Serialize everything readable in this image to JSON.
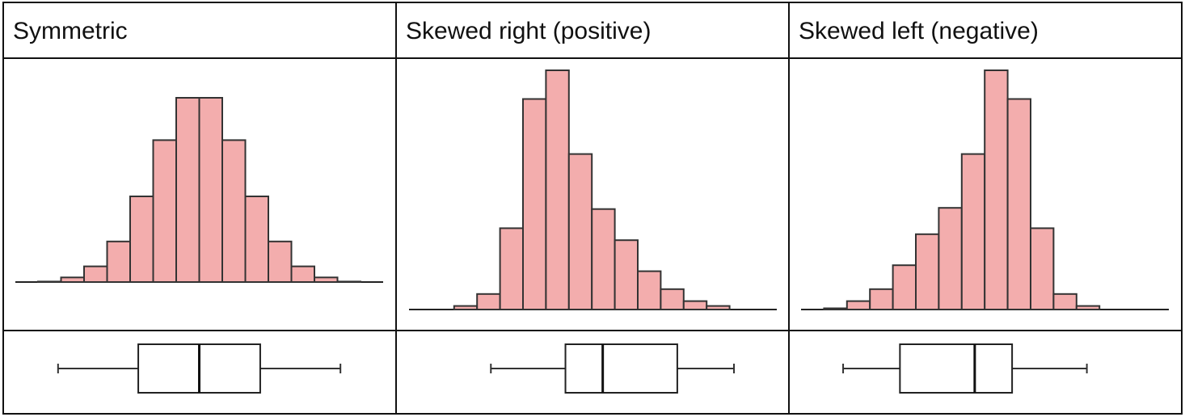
{
  "colors": {
    "bar_fill": "#f3adad",
    "line": "#222222",
    "background": "#ffffff"
  },
  "headers": [
    "Symmetric",
    "Skewed right (positive)",
    "Skewed left (negative)"
  ],
  "chart_data": [
    {
      "type": "bar",
      "title": "Symmetric",
      "values": [
        0.25,
        2.5,
        8.5,
        22,
        46.5,
        77,
        100,
        100,
        77,
        46.5,
        22,
        8.5,
        2.5,
        0.25
      ],
      "box": {
        "whisker_low": 0.06,
        "q1": 0.31,
        "median": 0.5,
        "q3": 0.69,
        "whisker_high": 0.94
      }
    },
    {
      "type": "bar",
      "title": "Skewed right (positive)",
      "values": [
        0,
        0,
        1.5,
        6.5,
        34,
        88,
        100,
        65,
        42,
        29,
        16,
        8.5,
        3.5,
        1.5,
        0
      ],
      "box": {
        "whisker_low": 0.12,
        "q1": 0.37,
        "median": 0.495,
        "q3": 0.745,
        "whisker_high": 0.935
      }
    },
    {
      "type": "bar",
      "title": "Skewed left (negative)",
      "values": [
        0,
        0.5,
        3.5,
        8.5,
        18.5,
        31.5,
        42.5,
        65,
        100,
        88,
        34,
        6.5,
        1.5,
        0,
        0
      ],
      "box": {
        "whisker_low": 0.065,
        "q1": 0.255,
        "median": 0.505,
        "q3": 0.63,
        "whisker_high": 0.88
      }
    }
  ]
}
